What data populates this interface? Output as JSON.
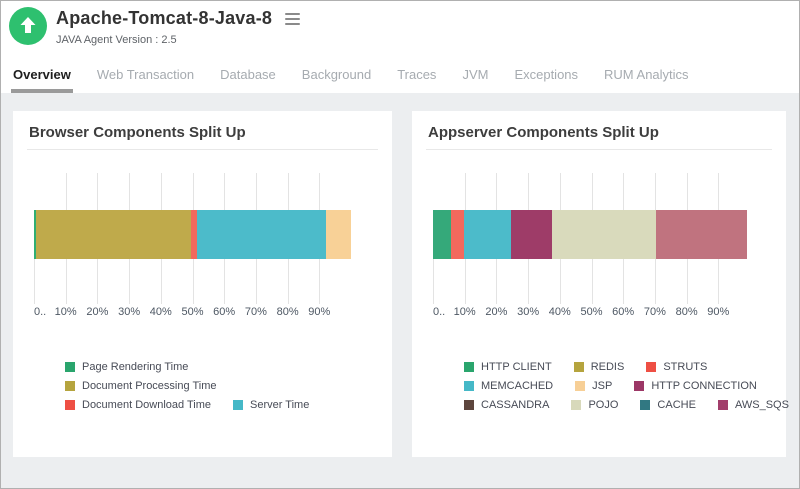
{
  "header": {
    "app_title": "Apache-Tomcat-8-Java-8",
    "subtitle": "JAVA Agent Version : 2.5",
    "status_icon_color": "#2ec06f"
  },
  "tabs": {
    "items": [
      {
        "label": "Overview",
        "active": true
      },
      {
        "label": "Web Transaction",
        "active": false
      },
      {
        "label": "Database",
        "active": false
      },
      {
        "label": "Background",
        "active": false
      },
      {
        "label": "Traces",
        "active": false
      },
      {
        "label": "JVM",
        "active": false
      },
      {
        "label": "Exceptions",
        "active": false
      },
      {
        "label": "RUM Analytics",
        "active": false
      }
    ]
  },
  "chart_data": [
    {
      "type": "bar",
      "variant": "horizontal-stacked-percent",
      "title": "Browser Components Split Up",
      "xlim": [
        0,
        100
      ],
      "x_ticks": [
        "0..",
        "10%",
        "20%",
        "30%",
        "40%",
        "50%",
        "60%",
        "70%",
        "80%",
        "90%"
      ],
      "segments": [
        {
          "name": "Page Rendering Time",
          "percent": 0.6,
          "color": "#2fae73"
        },
        {
          "name": "Document Processing Time",
          "percent": 48.9,
          "color": "#bfaa4b"
        },
        {
          "name": "Document Download Time",
          "percent": 1.9,
          "color": "#f3695d"
        },
        {
          "name": "Server Time",
          "percent": 40.6,
          "color": "#4cbbca"
        },
        {
          "name": "",
          "percent": 8.0,
          "color": "#f8d197"
        }
      ],
      "legend_rows": [
        [
          {
            "label": "Page Rendering Time",
            "color": "#2aa56d"
          }
        ],
        [
          {
            "label": "Document Processing Time",
            "color": "#b5a43e"
          }
        ],
        [
          {
            "label": "Document Download Time",
            "color": "#ee4f44"
          },
          {
            "label": "Server Time",
            "color": "#45b8c7"
          }
        ]
      ]
    },
    {
      "type": "bar",
      "variant": "horizontal-stacked-percent",
      "title": "Appserver Components Split Up",
      "xlim": [
        0,
        100
      ],
      "x_ticks": [
        "0..",
        "10%",
        "20%",
        "30%",
        "40%",
        "50%",
        "60%",
        "70%",
        "80%",
        "90%"
      ],
      "segments": [
        {
          "name": "HTTP CLIENT",
          "percent": 5.7,
          "color": "#35a97a"
        },
        {
          "name": "STRUTS",
          "percent": 4.2,
          "color": "#f3695d"
        },
        {
          "name": "MEMCACHED",
          "percent": 14.7,
          "color": "#4cbbca"
        },
        {
          "name": "HTTP CONNECTION",
          "percent": 12.8,
          "color": "#9e3c68"
        },
        {
          "name": "POJO",
          "percent": 32.8,
          "color": "#d9dabc"
        },
        {
          "name": "AWS_SQS",
          "percent": 29.0,
          "color": "#c0737f"
        }
      ],
      "legend_rows": [
        [
          {
            "label": "HTTP CLIENT",
            "color": "#2aa56d"
          },
          {
            "label": "REDIS",
            "color": "#b5a43e"
          },
          {
            "label": "STRUTS",
            "color": "#ee4f44"
          }
        ],
        [
          {
            "label": "MEMCACHED",
            "color": "#45b8c7"
          },
          {
            "label": "JSP",
            "color": "#f7cf96"
          },
          {
            "label": "HTTP CONNECTION",
            "color": "#9c3766"
          }
        ],
        [
          {
            "label": "CASSANDRA",
            "color": "#5d453d"
          },
          {
            "label": "POJO",
            "color": "#d8d9bb"
          },
          {
            "label": "CACHE",
            "color": "#317882"
          },
          {
            "label": "AWS_SQS",
            "color": "#a23e6b"
          }
        ]
      ]
    }
  ]
}
